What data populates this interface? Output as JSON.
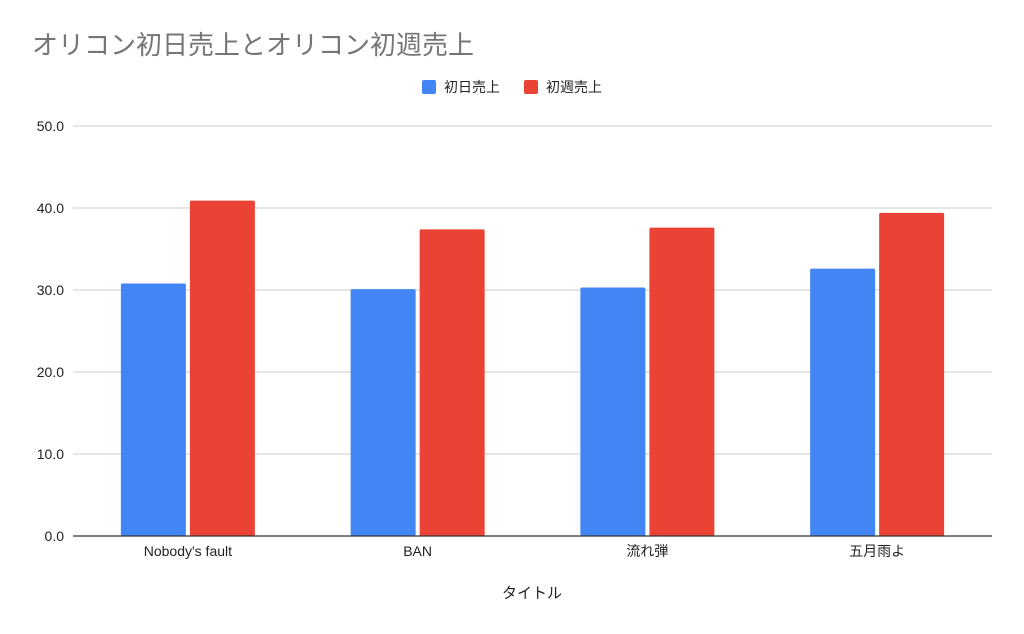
{
  "chart_data": {
    "type": "bar",
    "title": "オリコン初日売上とオリコン初週売上",
    "xlabel": "タイトル",
    "ylabel": "",
    "categories": [
      "Nobody's fault",
      "BAN",
      "流れ弾",
      "五月雨よ"
    ],
    "series": [
      {
        "name": "初日売上",
        "color": "#4285f4",
        "values": [
          30.8,
          30.1,
          30.3,
          32.6
        ]
      },
      {
        "name": "初週売上",
        "color": "#ea4335",
        "values": [
          40.9,
          37.4,
          37.6,
          39.4
        ]
      }
    ],
    "ylim": [
      0,
      50
    ],
    "yticks": [
      "0.0",
      "10.0",
      "20.0",
      "30.0",
      "40.0",
      "50.0"
    ],
    "grid": true,
    "legend_position": "top-center"
  }
}
